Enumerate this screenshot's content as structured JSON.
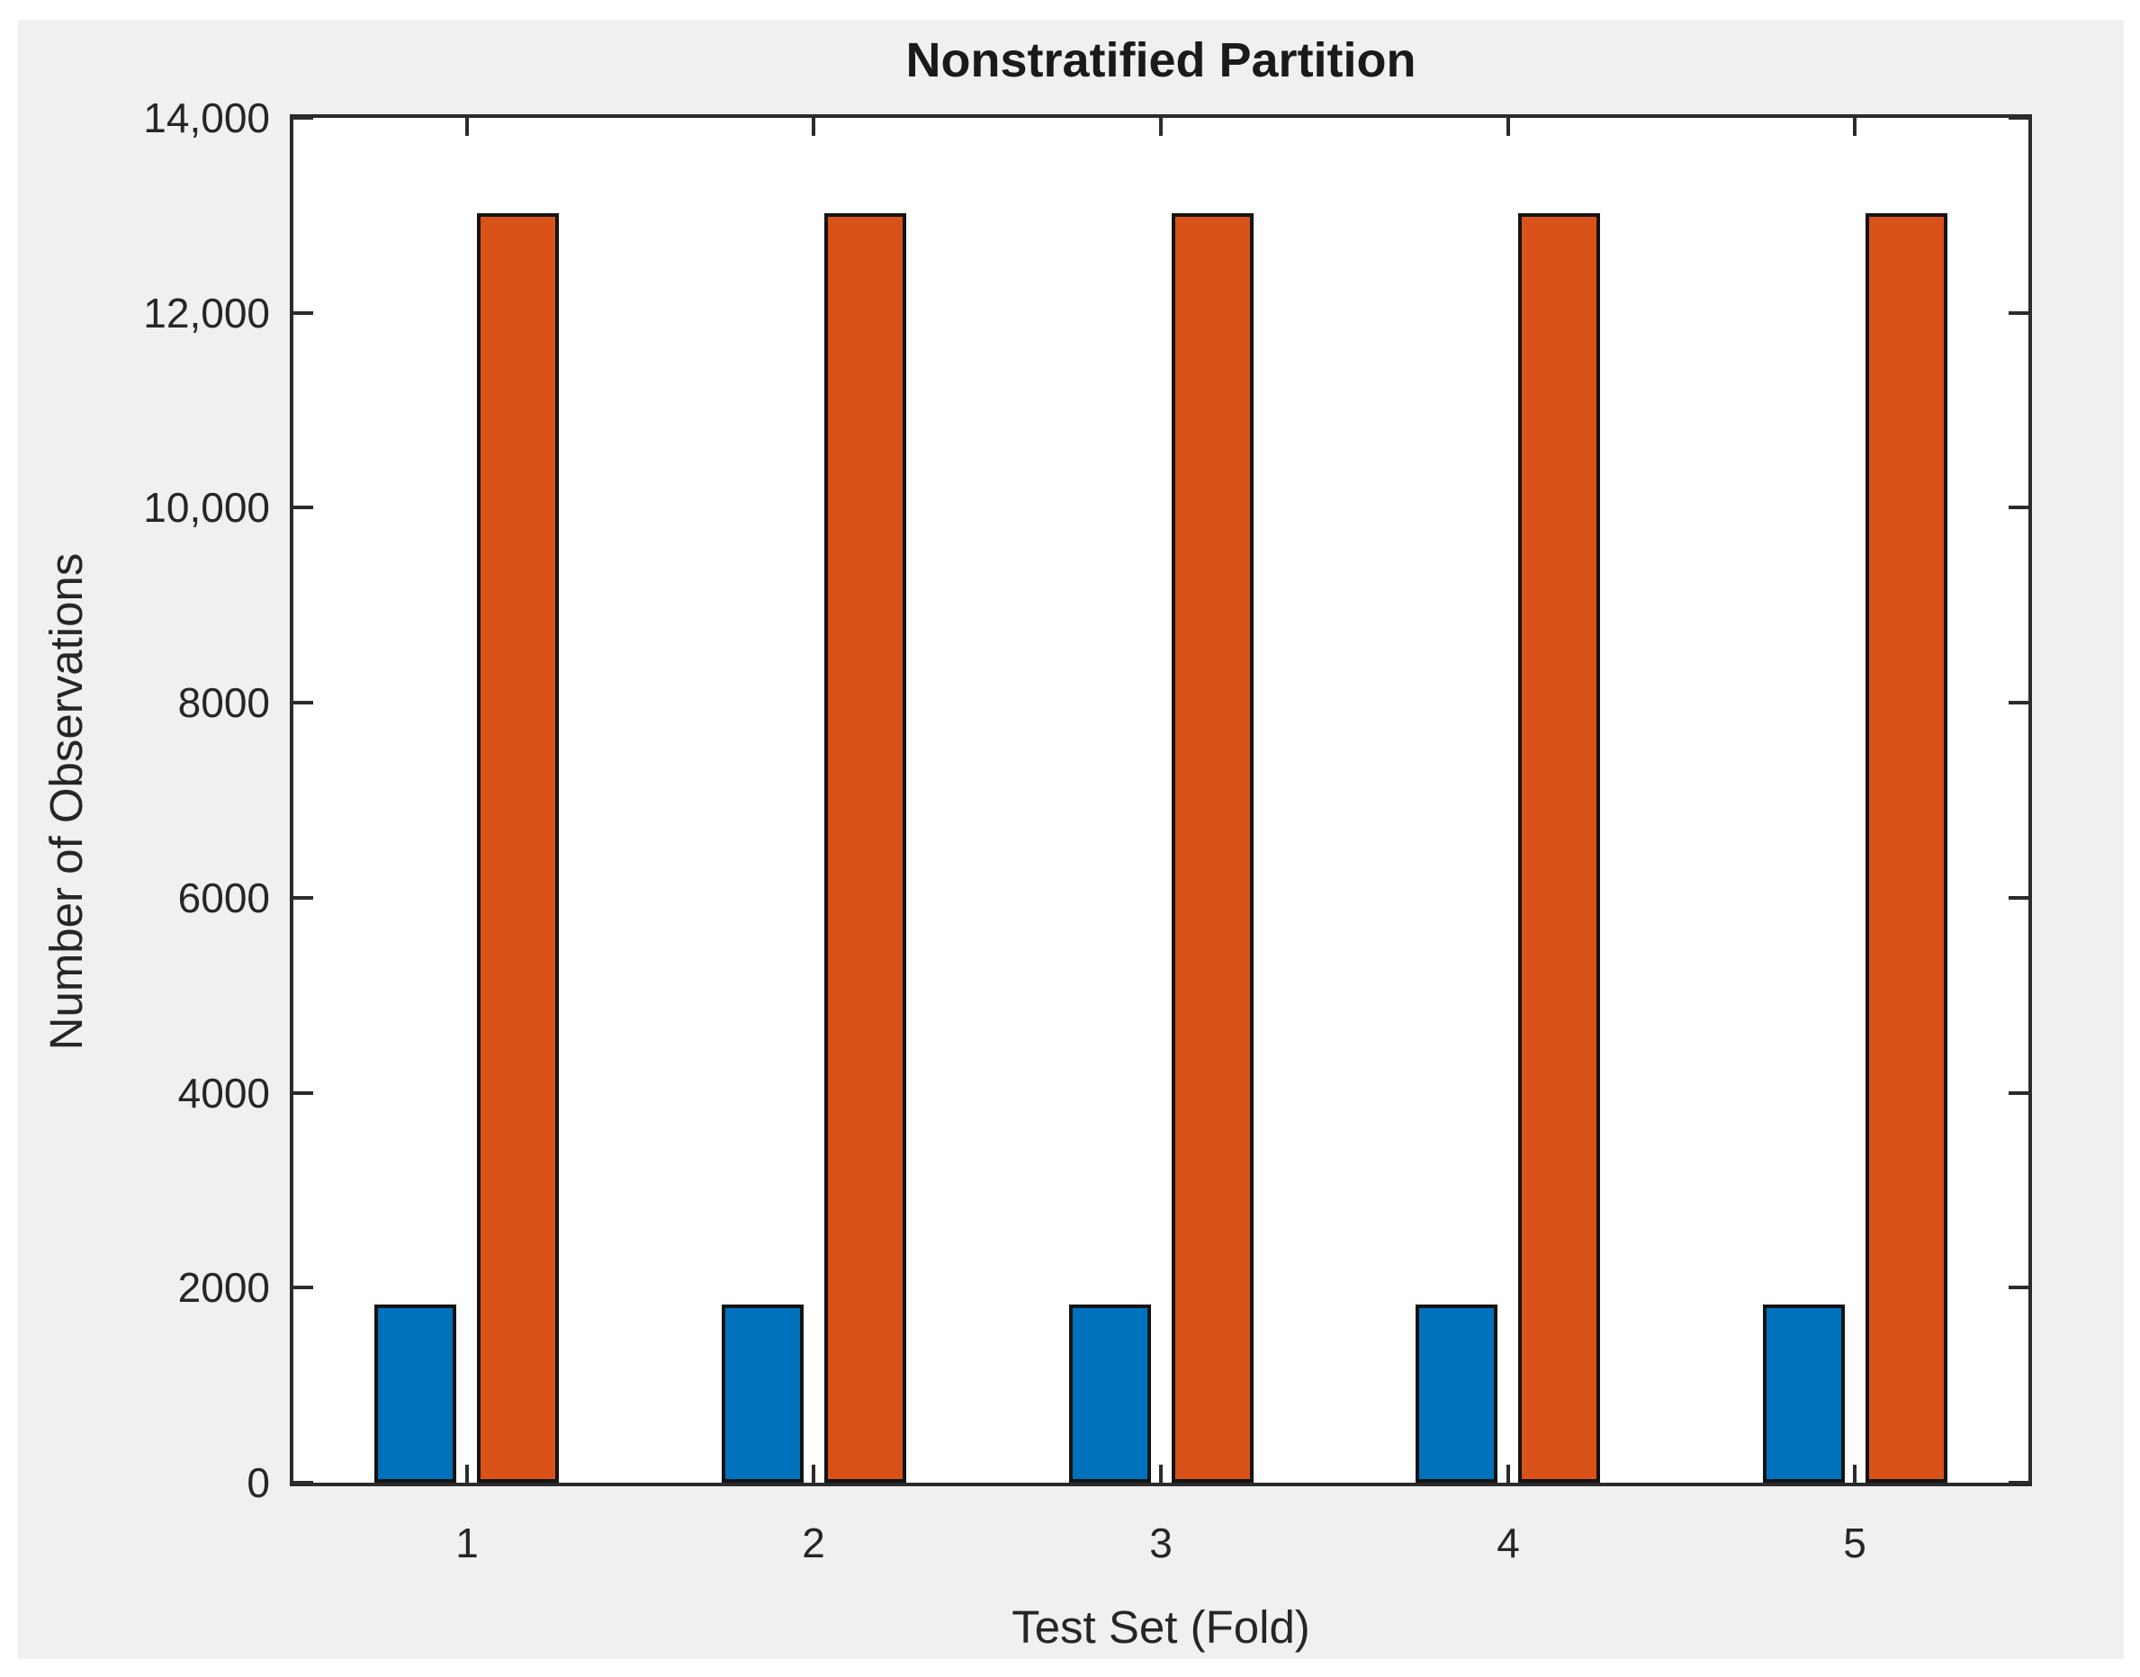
{
  "figure": {
    "background": "#f0f0f0",
    "page_background": "#ffffff"
  },
  "chart_data": {
    "type": "bar",
    "title": "Nonstratified Partition",
    "xlabel": "Test Set (Fold)",
    "ylabel": "Number of Observations",
    "categories": [
      "1",
      "2",
      "3",
      "4",
      "5"
    ],
    "series": [
      {
        "name": "Series 1",
        "color": "#0072BD",
        "values": [
          1830,
          1830,
          1830,
          1830,
          1830
        ]
      },
      {
        "name": "Series 2",
        "color": "#D95319",
        "values": [
          13020,
          13020,
          13020,
          13020,
          13020
        ]
      }
    ],
    "ylim": [
      0,
      14000
    ],
    "ytick_values": [
      0,
      2000,
      4000,
      6000,
      8000,
      10000,
      12000,
      14000
    ],
    "ytick_labels": [
      "0",
      "2000",
      "4000",
      "6000",
      "8000",
      "10,000",
      "12,000",
      "14,000"
    ],
    "grid": false,
    "legend_visible": false,
    "box": true,
    "tick_direction": "in",
    "bar_edge_color": "#141414",
    "axes_color": "#2b2b2b",
    "text_color": "#262626"
  }
}
